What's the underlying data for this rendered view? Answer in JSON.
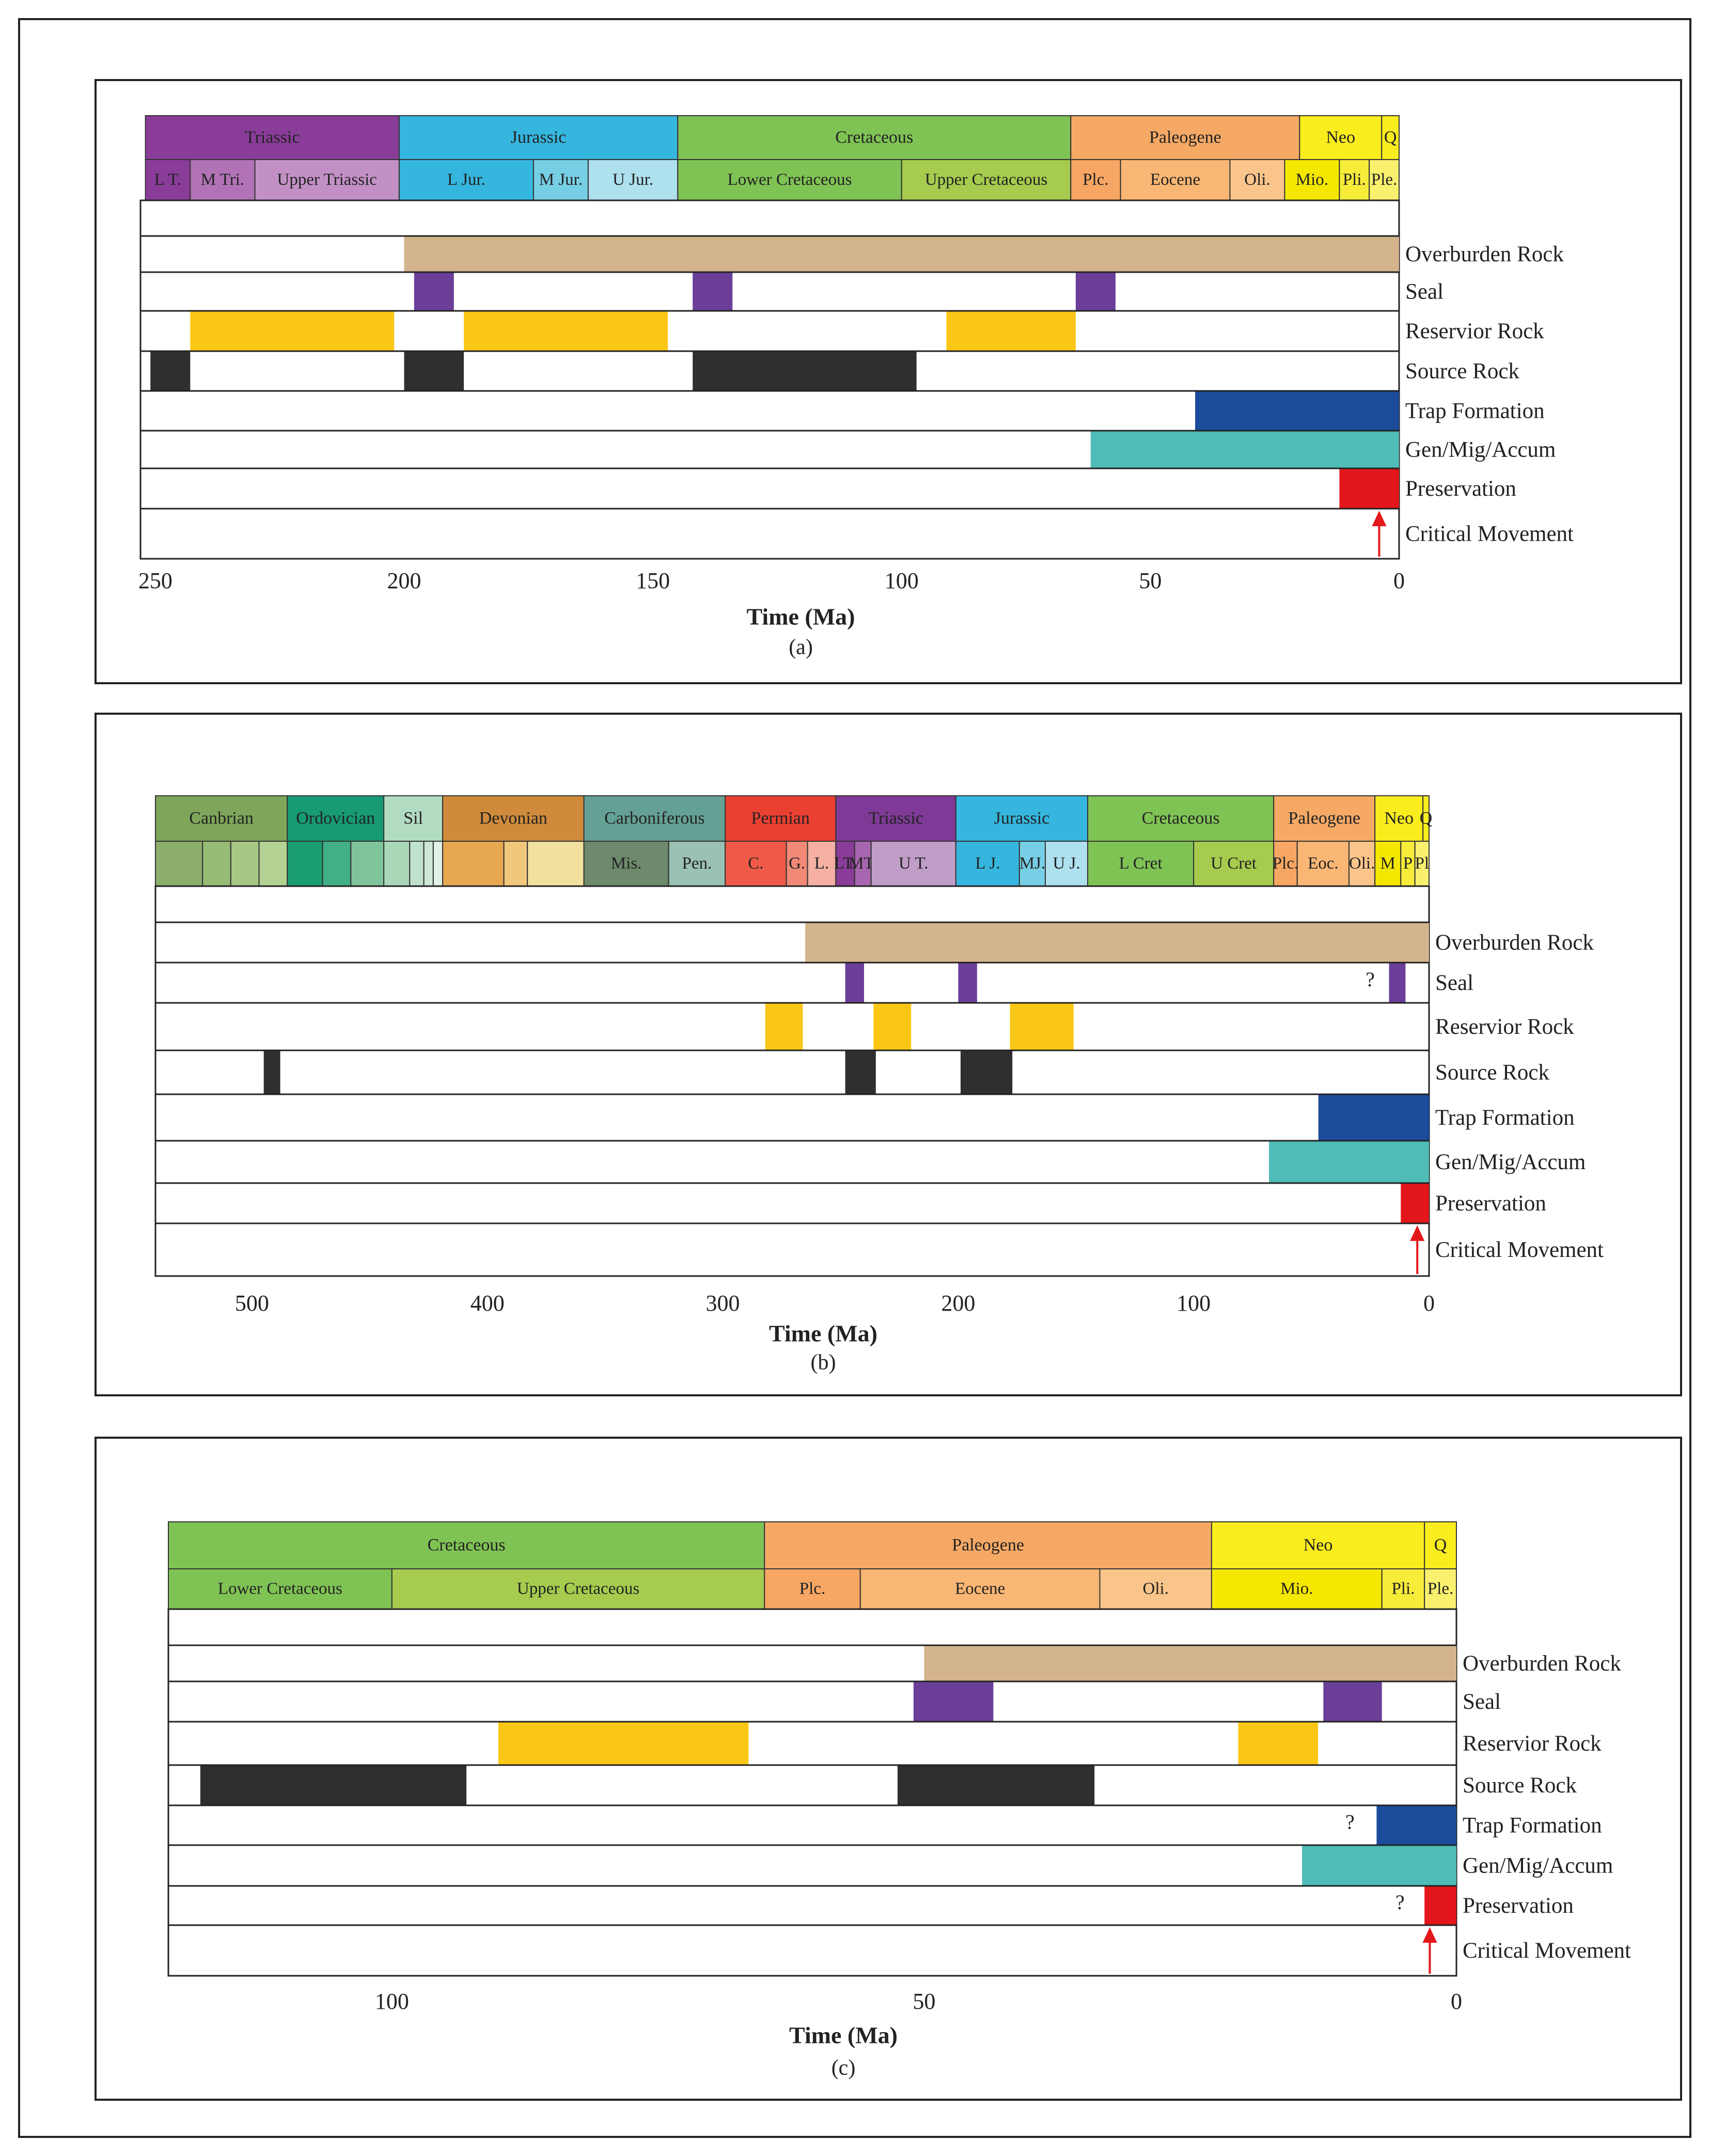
{
  "chart_data": [
    {
      "type": "gantt",
      "caption": "(a)",
      "xlabel": "Time (Ma)",
      "xlim": [
        253,
        0
      ],
      "ticks": [
        250,
        200,
        150,
        100,
        50,
        0
      ],
      "periods": [
        {
          "name": "Triassic",
          "start": 252,
          "end": 201,
          "color": "#8a3c99"
        },
        {
          "name": "Jurassic",
          "start": 201,
          "end": 145,
          "color": "#35b6de"
        },
        {
          "name": "Cretaceous",
          "start": 145,
          "end": 66,
          "color": "#80c355"
        },
        {
          "name": "Paleogene",
          "start": 66,
          "end": 20,
          "color": "#f5a965"
        },
        {
          "name": "Neo",
          "start": 20,
          "end": 3.5,
          "color": "#faed1e"
        },
        {
          "name": "Q",
          "start": 3.5,
          "end": 0,
          "color": "#faed1e"
        }
      ],
      "epochs": [
        {
          "name": "L T.",
          "start": 252,
          "end": 243,
          "color": "#8a3c99"
        },
        {
          "name": "M Tri.",
          "start": 243,
          "end": 230,
          "color": "#b173b5"
        },
        {
          "name": "Upper Triassic",
          "start": 230,
          "end": 201,
          "color": "#c390c6"
        },
        {
          "name": "L Jur.",
          "start": 201,
          "end": 174,
          "color": "#35b6de"
        },
        {
          "name": "M Jur.",
          "start": 174,
          "end": 163,
          "color": "#77cfe5"
        },
        {
          "name": "U Jur.",
          "start": 163,
          "end": 145,
          "color": "#aee0ee"
        },
        {
          "name": "Lower Cretaceous",
          "start": 145,
          "end": 100,
          "color": "#80c355"
        },
        {
          "name": "Upper Cretaceous",
          "start": 100,
          "end": 66,
          "color": "#a6cb4e"
        },
        {
          "name": "Plc.",
          "start": 66,
          "end": 56,
          "color": "#f7a663"
        },
        {
          "name": "Eocene",
          "start": 56,
          "end": 34,
          "color": "#f9b674"
        },
        {
          "name": "Oli.",
          "start": 34,
          "end": 23,
          "color": "#fac58a"
        },
        {
          "name": "Mio.",
          "start": 23,
          "end": 12,
          "color": "#f5e800"
        },
        {
          "name": "Pli.",
          "start": 12,
          "end": 6,
          "color": "#f7ec3a"
        },
        {
          "name": "Ple.",
          "start": 6,
          "end": 0,
          "color": "#f9f06e"
        }
      ],
      "rows": [
        {
          "label": "Overburden Rock",
          "color": "#d4b48c",
          "bars": [
            [
              200,
              0
            ]
          ]
        },
        {
          "label": "Seal",
          "color": "#6b3f99",
          "bars": [
            [
              198,
              190
            ],
            [
              142,
              134
            ],
            [
              65,
              57
            ]
          ]
        },
        {
          "label": "Reservior Rock",
          "color": "#fbc716",
          "bars": [
            [
              243,
              202
            ],
            [
              188,
              147
            ],
            [
              91,
              65
            ]
          ]
        },
        {
          "label": "Source Rock",
          "color": "#2f2f2f",
          "bars": [
            [
              251,
              243
            ],
            [
              200,
              188
            ],
            [
              142,
              97
            ]
          ]
        },
        {
          "label": "Trap Formation",
          "color": "#1b4b9b",
          "bars": [
            [
              41,
              0
            ]
          ]
        },
        {
          "label": "Gen/Mig/Accum",
          "color": "#4fbcb7",
          "bars": [
            [
              62,
              0
            ]
          ]
        },
        {
          "label": "Preservation",
          "color": "#e3171b",
          "bars": [
            [
              12,
              0
            ]
          ]
        },
        {
          "label": "Critical Movement",
          "color": "#e3171b",
          "bars": [],
          "arrow_at": 4
        }
      ],
      "annotations": []
    },
    {
      "type": "gantt",
      "caption": "(b)",
      "xlabel": "Time (Ma)",
      "xlim": [
        541,
        0
      ],
      "ticks": [
        500,
        400,
        300,
        200,
        100,
        0
      ],
      "periods": [
        {
          "name": "Canbrian",
          "start": 541,
          "end": 485,
          "color": "#7ea65a"
        },
        {
          "name": "Ordovician",
          "start": 485,
          "end": 444,
          "color": "#169b74"
        },
        {
          "name": "Sil",
          "start": 444,
          "end": 419,
          "color": "#b2dcc2"
        },
        {
          "name": "Devonian",
          "start": 419,
          "end": 359,
          "color": "#cf8b3b"
        },
        {
          "name": "Carboniferous",
          "start": 359,
          "end": 299,
          "color": "#64a094"
        },
        {
          "name": "Permian",
          "start": 299,
          "end": 252,
          "color": "#ea4032"
        },
        {
          "name": "Triassic",
          "start": 252,
          "end": 201,
          "color": "#7e3a96"
        },
        {
          "name": "Jurassic",
          "start": 201,
          "end": 145,
          "color": "#35b6de"
        },
        {
          "name": "Cretaceous",
          "start": 145,
          "end": 66,
          "color": "#80c355"
        },
        {
          "name": "Paleogene",
          "start": 66,
          "end": 23,
          "color": "#f5a965"
        },
        {
          "name": "Neo",
          "start": 23,
          "end": 2.6,
          "color": "#faed1e"
        },
        {
          "name": "Q",
          "start": 2.6,
          "end": 0,
          "color": "#faed1e"
        }
      ],
      "epochs": [
        {
          "name": "",
          "start": 541,
          "end": 521,
          "color": "#8bae6b"
        },
        {
          "name": "",
          "start": 521,
          "end": 509,
          "color": "#97bc76"
        },
        {
          "name": "",
          "start": 509,
          "end": 497,
          "color": "#a6c884"
        },
        {
          "name": "",
          "start": 497,
          "end": 485,
          "color": "#b4d294"
        },
        {
          "name": "",
          "start": 485,
          "end": 470,
          "color": "#1a9d6f"
        },
        {
          "name": "",
          "start": 470,
          "end": 458,
          "color": "#41b087"
        },
        {
          "name": "",
          "start": 458,
          "end": 444,
          "color": "#7fc49b"
        },
        {
          "name": "",
          "start": 444,
          "end": 433,
          "color": "#a8d8b8"
        },
        {
          "name": "",
          "start": 433,
          "end": 427,
          "color": "#bfe2cc"
        },
        {
          "name": "",
          "start": 427,
          "end": 423,
          "color": "#cde8d6"
        },
        {
          "name": "",
          "start": 423,
          "end": 419,
          "color": "#e0f1e6"
        },
        {
          "name": "",
          "start": 419,
          "end": 393,
          "color": "#e8a850"
        },
        {
          "name": "",
          "start": 393,
          "end": 383,
          "color": "#f1c77c"
        },
        {
          "name": "",
          "start": 383,
          "end": 359,
          "color": "#f2e19e"
        },
        {
          "name": "Mis.",
          "start": 359,
          "end": 323,
          "color": "#6d8a6c"
        },
        {
          "name": "Pen.",
          "start": 323,
          "end": 299,
          "color": "#9ac1b4"
        },
        {
          "name": "C.",
          "start": 299,
          "end": 273,
          "color": "#ee5a47"
        },
        {
          "name": "G.",
          "start": 273,
          "end": 264,
          "color": "#f08a77"
        },
        {
          "name": "L.",
          "start": 264,
          "end": 252,
          "color": "#f5b0a3"
        },
        {
          "name": "LT.",
          "start": 252,
          "end": 244,
          "color": "#8a3c99"
        },
        {
          "name": "MT.",
          "start": 244,
          "end": 237,
          "color": "#a966b0"
        },
        {
          "name": "U T.",
          "start": 237,
          "end": 201,
          "color": "#c09dc7"
        },
        {
          "name": "L J.",
          "start": 201,
          "end": 174,
          "color": "#35b6de"
        },
        {
          "name": "MJ.",
          "start": 174,
          "end": 163,
          "color": "#77cfe5"
        },
        {
          "name": "U J.",
          "start": 163,
          "end": 145,
          "color": "#aee0ee"
        },
        {
          "name": "L Cret",
          "start": 145,
          "end": 100,
          "color": "#80c355"
        },
        {
          "name": "U Cret",
          "start": 100,
          "end": 66,
          "color": "#a6cb4e"
        },
        {
          "name": "Plc.",
          "start": 66,
          "end": 56,
          "color": "#f7a663"
        },
        {
          "name": "Eoc.",
          "start": 56,
          "end": 34,
          "color": "#f9b674"
        },
        {
          "name": "Oli.",
          "start": 34,
          "end": 23,
          "color": "#fac58a"
        },
        {
          "name": "M",
          "start": 23,
          "end": 12,
          "color": "#f5e800"
        },
        {
          "name": "P",
          "start": 12,
          "end": 6,
          "color": "#f7ec3a"
        },
        {
          "name": "Pl",
          "start": 6,
          "end": 0,
          "color": "#f9f06e"
        }
      ],
      "rows": [
        {
          "label": "Overburden Rock",
          "color": "#d4b48c",
          "bars": [
            [
              265,
              0
            ]
          ]
        },
        {
          "label": "Seal",
          "color": "#6b3f99",
          "bars": [
            [
              248,
              240
            ],
            [
              200,
              192
            ],
            [
              17,
              10
            ]
          ]
        },
        {
          "label": "Reservior Rock",
          "color": "#fbc716",
          "bars": [
            [
              282,
              266
            ],
            [
              236,
              220
            ],
            [
              178,
              151
            ]
          ]
        },
        {
          "label": "Source Rock",
          "color": "#2f2f2f",
          "bars": [
            [
              495,
              488
            ],
            [
              248,
              235
            ],
            [
              199,
              177
            ]
          ]
        },
        {
          "label": "Trap Formation",
          "color": "#1b4b9b",
          "bars": [
            [
              47,
              0
            ]
          ]
        },
        {
          "label": "Gen/Mig/Accum",
          "color": "#4fbcb7",
          "bars": [
            [
              68,
              0
            ]
          ]
        },
        {
          "label": "Preservation",
          "color": "#e3171b",
          "bars": [
            [
              12,
              0
            ]
          ]
        },
        {
          "label": "Critical Movement",
          "color": "#e3171b",
          "bars": [],
          "arrow_at": 5
        }
      ],
      "annotations": [
        {
          "row": "Seal",
          "x": 25,
          "text": "?"
        }
      ]
    },
    {
      "type": "gantt",
      "caption": "(c)",
      "xlabel": "Time (Ma)",
      "xlim": [
        121,
        0
      ],
      "ticks": [
        100,
        50,
        0
      ],
      "periods": [
        {
          "name": "Cretaceous",
          "start": 121,
          "end": 65,
          "color": "#80c355"
        },
        {
          "name": "Paleogene",
          "start": 65,
          "end": 23,
          "color": "#f5a965"
        },
        {
          "name": "Neo",
          "start": 23,
          "end": 3,
          "color": "#faed1e"
        },
        {
          "name": "Q",
          "start": 3,
          "end": 0,
          "color": "#faed1e"
        }
      ],
      "epochs": [
        {
          "name": "Lower Cretaceous",
          "start": 121,
          "end": 100,
          "color": "#80c355"
        },
        {
          "name": "Upper Cretaceous",
          "start": 100,
          "end": 65,
          "color": "#a6cb4e"
        },
        {
          "name": "Plc.",
          "start": 65,
          "end": 56,
          "color": "#f7a663"
        },
        {
          "name": "Eocene",
          "start": 56,
          "end": 33.5,
          "color": "#f9b674"
        },
        {
          "name": "Oli.",
          "start": 33.5,
          "end": 23,
          "color": "#fac58a"
        },
        {
          "name": "Mio.",
          "start": 23,
          "end": 7,
          "color": "#f5e800"
        },
        {
          "name": "Pli.",
          "start": 7,
          "end": 3,
          "color": "#f7ec3a"
        },
        {
          "name": "Ple.",
          "start": 3,
          "end": 0,
          "color": "#f9f06e"
        }
      ],
      "rows": [
        {
          "label": "Overburden Rock",
          "color": "#d4b48c",
          "bars": [
            [
              50,
              0
            ]
          ]
        },
        {
          "label": "Seal",
          "color": "#6b3f99",
          "bars": [
            [
              51,
              43.5
            ],
            [
              12.5,
              7
            ]
          ]
        },
        {
          "label": "Reservior Rock",
          "color": "#fbc716",
          "bars": [
            [
              90,
              66.5
            ],
            [
              20.5,
              13
            ]
          ]
        },
        {
          "label": "Source Rock",
          "color": "#2f2f2f",
          "bars": [
            [
              118,
              93
            ],
            [
              52.5,
              34
            ]
          ]
        },
        {
          "label": "Trap Formation",
          "color": "#1b4b9b",
          "bars": [
            [
              7.5,
              0
            ]
          ]
        },
        {
          "label": "Gen/Mig/Accum",
          "color": "#4fbcb7",
          "bars": [
            [
              14.5,
              0
            ]
          ]
        },
        {
          "label": "Preservation",
          "color": "#e3171b",
          "bars": [
            [
              3,
              0
            ]
          ]
        },
        {
          "label": "Critical Movement",
          "color": "#e3171b",
          "bars": [],
          "arrow_at": 2.5
        }
      ],
      "annotations": [
        {
          "row": "Trap Formation",
          "x": 10,
          "text": "?"
        },
        {
          "row": "Preservation",
          "x": 5.3,
          "text": "?"
        }
      ]
    }
  ]
}
